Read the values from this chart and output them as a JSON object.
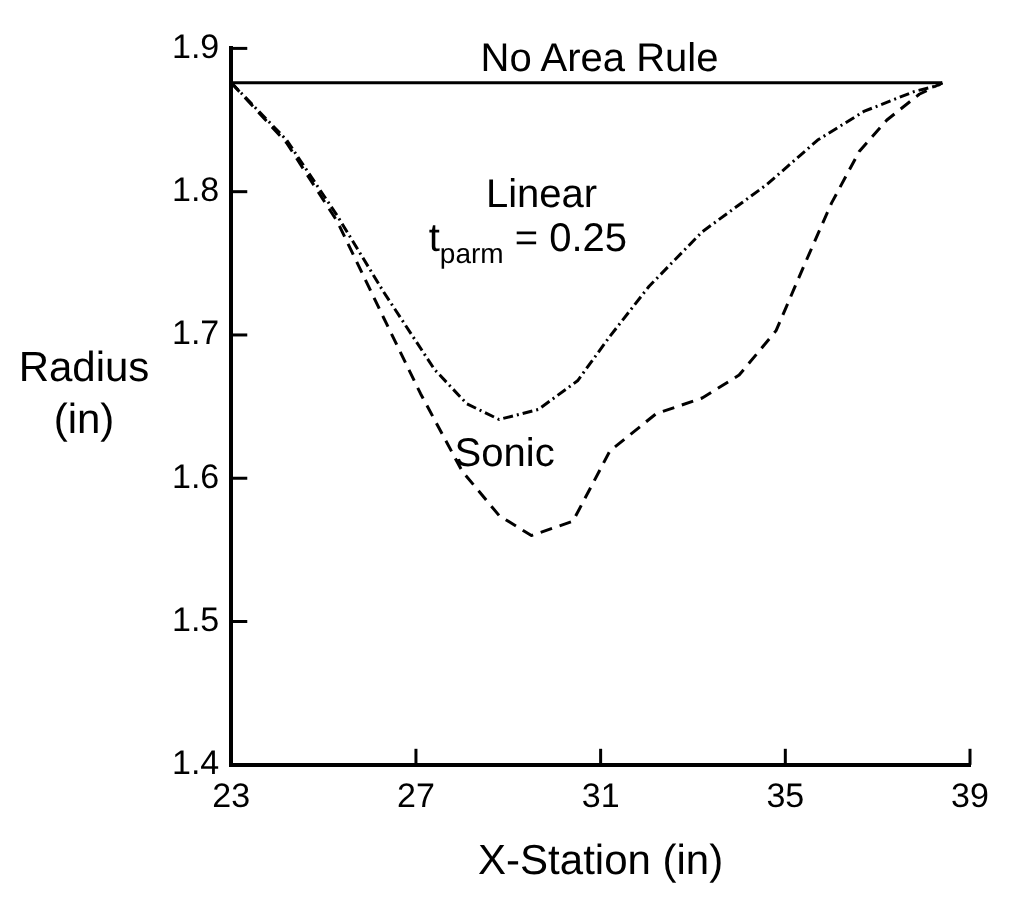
{
  "chart_data": {
    "type": "line",
    "xlabel": "X-Station (in)",
    "ylabel": "Radius\n(in)",
    "xlim": [
      23,
      39
    ],
    "ylim": [
      1.4,
      1.9
    ],
    "xticks": [
      23,
      27,
      31,
      35,
      39
    ],
    "yticks": [
      1.4,
      1.5,
      1.6,
      1.7,
      1.8,
      1.9
    ],
    "grid": false,
    "legend": false,
    "series": [
      {
        "color": "#000000",
        "line_style": "solid",
        "x": [
          23,
          38.4
        ],
        "values": [
          1.876,
          1.876
        ]
      },
      {
        "color": "#000000",
        "line_style": "dotted",
        "x": [
          23,
          24.2,
          25.3,
          26.3,
          27.4,
          28.1,
          28.8,
          29.65,
          30.5,
          31.2,
          32.05,
          33.2,
          34.6,
          35.7,
          36.7,
          37.8,
          38.3,
          38.4
        ],
        "values": [
          1.876,
          1.836,
          1.783,
          1.73,
          1.676,
          1.652,
          1.641,
          1.648,
          1.668,
          1.699,
          1.734,
          1.772,
          1.805,
          1.836,
          1.856,
          1.87,
          1.874,
          1.876
        ]
      },
      {
        "color": "#000000",
        "line_style": "dashed",
        "x": [
          23,
          24.2,
          25.3,
          26.3,
          27.1,
          28.0,
          28.8,
          29.5,
          30.4,
          31.2,
          32.2,
          33.2,
          34.0,
          34.8,
          35.4,
          36.0,
          36.6,
          37.2,
          37.9,
          38.4
        ],
        "values": [
          1.876,
          1.834,
          1.779,
          1.712,
          1.659,
          1.605,
          1.574,
          1.56,
          1.57,
          1.619,
          1.645,
          1.656,
          1.672,
          1.703,
          1.748,
          1.792,
          1.828,
          1.85,
          1.868,
          1.876
        ]
      }
    ],
    "annotations": [
      {
        "text": "No Area Rule",
        "x": 31,
        "y": 1.876
      },
      "Linear\nt$_{parm}$ = 0.25",
      "Sonic"
    ]
  }
}
